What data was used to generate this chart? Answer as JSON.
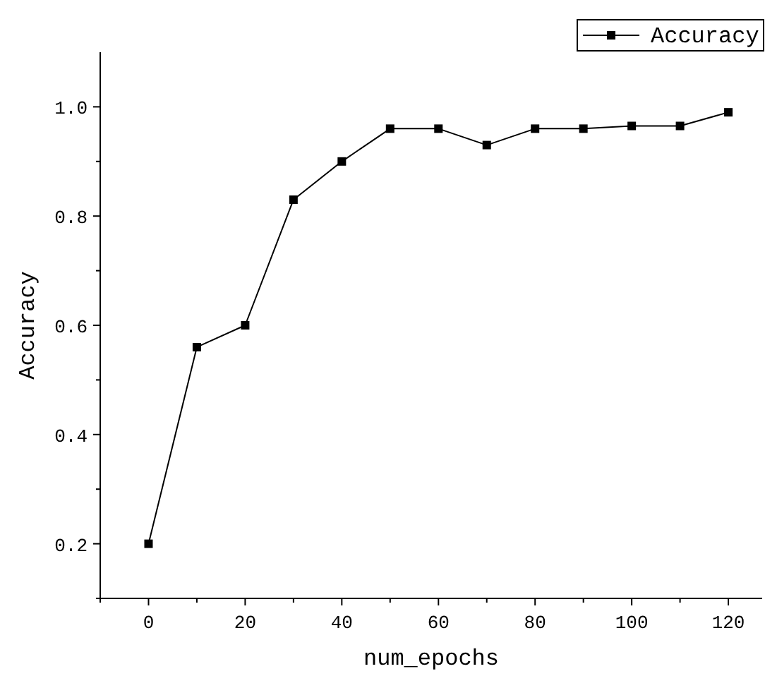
{
  "chart_data": {
    "type": "line",
    "xlabel": "num_epochs",
    "ylabel": "Accuracy",
    "x": [
      0,
      10,
      20,
      30,
      40,
      50,
      60,
      70,
      80,
      90,
      100,
      110,
      120
    ],
    "series": [
      {
        "name": "Accuracy",
        "color": "#000000",
        "values": [
          0.2,
          0.56,
          0.6,
          0.83,
          0.9,
          0.96,
          0.96,
          0.93,
          0.96,
          0.96,
          0.965,
          0.965,
          0.99
        ]
      }
    ],
    "xlim": [
      -10,
      127
    ],
    "xticks": [
      {
        "value": -10,
        "label": null
      },
      0,
      {
        "value": 10,
        "label": null
      },
      20,
      {
        "value": 30,
        "label": null
      },
      40,
      {
        "value": 50,
        "label": null
      },
      60,
      {
        "value": 70,
        "label": null
      },
      80,
      {
        "value": 90,
        "label": null
      },
      100,
      {
        "value": 110,
        "label": null
      },
      120
    ],
    "ylim": [
      0.1,
      1.1
    ],
    "yticks": [
      {
        "value": 0.1,
        "label": null
      },
      {
        "value": 0.2,
        "label": "0.2"
      },
      {
        "value": 0.3,
        "label": null
      },
      {
        "value": 0.4,
        "label": "0.4"
      },
      {
        "value": 0.5,
        "label": null
      },
      {
        "value": 0.6,
        "label": "0.6"
      },
      {
        "value": 0.7,
        "label": null
      },
      {
        "value": 0.8,
        "label": "0.8"
      },
      {
        "value": 0.9,
        "label": null
      },
      {
        "value": 1.0,
        "label": "1.0"
      }
    ],
    "marker": "square",
    "line_style": "solid",
    "legend": "top right",
    "grid": false
  }
}
